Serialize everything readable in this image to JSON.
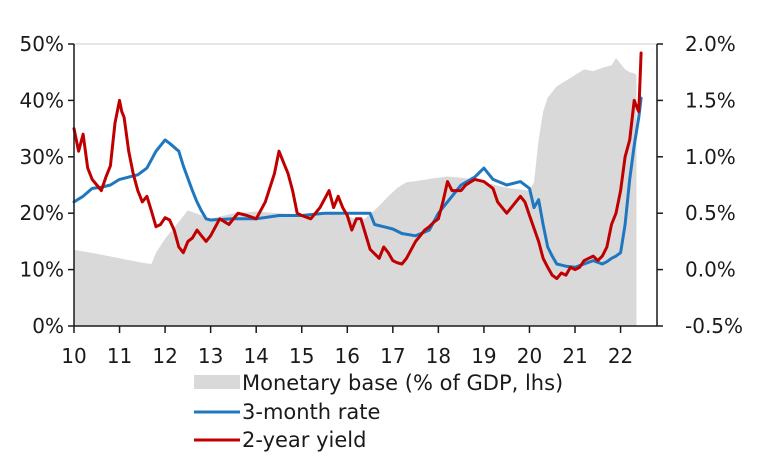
{
  "chart_data": {
    "type": "line",
    "title": "",
    "xlabel": "",
    "ylabel": "",
    "x_range": [
      10,
      22.8
    ],
    "x_ticks": [
      10,
      11,
      12,
      13,
      14,
      15,
      16,
      17,
      18,
      19,
      20,
      21,
      22
    ],
    "x_tick_labels": [
      "10",
      "11",
      "12",
      "13",
      "14",
      "15",
      "16",
      "17",
      "18",
      "19",
      "20",
      "21",
      "22"
    ],
    "left_axis": {
      "range": [
        0,
        50
      ],
      "ticks": [
        0,
        10,
        20,
        30,
        40,
        50
      ],
      "tick_labels": [
        "0%",
        "10%",
        "20%",
        "30%",
        "40%",
        "50%"
      ]
    },
    "right_axis": {
      "range": [
        -0.5,
        2.0
      ],
      "ticks": [
        -0.5,
        0.0,
        0.5,
        1.0,
        1.5,
        2.0
      ],
      "tick_labels": [
        "-0.5%",
        "0.0%",
        "0.5%",
        "1.0%",
        "1.5%",
        "2.0%"
      ]
    },
    "legend_position": "bottom",
    "colors": {
      "monetary_base": "#d9d9d9",
      "three_month": "#1f77c0",
      "two_year": "#c00000",
      "axis": "#1a1a1a",
      "grid": "#cccccc"
    },
    "series": [
      {
        "name": "Monetary base (% of GDP, lhs)",
        "kind": "area",
        "axis": "left",
        "x": [
          10.0,
          10.5,
          11.0,
          11.5,
          11.7,
          11.8,
          12.0,
          12.3,
          12.5,
          13.0,
          13.5,
          14.0,
          14.5,
          15.0,
          15.5,
          16.0,
          16.3,
          16.6,
          16.9,
          17.1,
          17.3,
          17.6,
          17.9,
          18.2,
          18.5,
          18.8,
          19.0,
          19.5,
          20.0,
          20.1,
          20.2,
          20.3,
          20.4,
          20.6,
          20.8,
          21.0,
          21.2,
          21.4,
          21.6,
          21.8,
          21.9,
          22.0,
          22.1,
          22.2,
          22.3,
          22.35
        ],
        "values": [
          13.5,
          12.8,
          12.0,
          11.2,
          11.0,
          13.0,
          15.5,
          18.5,
          20.5,
          19.0,
          20.0,
          20.3,
          20.0,
          19.8,
          20.0,
          19.6,
          18.5,
          20.5,
          23.0,
          24.5,
          25.5,
          25.8,
          26.2,
          26.5,
          26.3,
          26.0,
          25.5,
          24.5,
          24.0,
          25.5,
          33.0,
          38.0,
          40.5,
          42.5,
          43.5,
          44.5,
          45.5,
          45.2,
          45.8,
          46.2,
          47.5,
          46.5,
          45.5,
          45.0,
          44.8,
          44.5
        ]
      },
      {
        "name": "3-month rate",
        "kind": "line",
        "axis": "right",
        "x": [
          10.0,
          10.2,
          10.4,
          10.6,
          10.8,
          11.0,
          11.2,
          11.4,
          11.6,
          11.8,
          12.0,
          12.1,
          12.3,
          12.4,
          12.6,
          12.7,
          12.8,
          12.9,
          13.0,
          13.5,
          14.0,
          14.5,
          15.0,
          15.5,
          16.0,
          16.3,
          16.5,
          16.6,
          16.8,
          17.0,
          17.2,
          17.5,
          17.8,
          18.0,
          18.3,
          18.5,
          18.8,
          19.0,
          19.2,
          19.5,
          19.8,
          20.0,
          20.1,
          20.2,
          20.3,
          20.4,
          20.5,
          20.6,
          20.7,
          20.8,
          21.0,
          21.2,
          21.4,
          21.6,
          21.7,
          21.8,
          21.9,
          22.0,
          22.1,
          22.2,
          22.3,
          22.4,
          22.45
        ],
        "values": [
          0.6,
          0.65,
          0.72,
          0.73,
          0.75,
          0.8,
          0.82,
          0.84,
          0.9,
          1.05,
          1.15,
          1.12,
          1.05,
          0.92,
          0.7,
          0.6,
          0.52,
          0.45,
          0.44,
          0.45,
          0.45,
          0.48,
          0.48,
          0.5,
          0.5,
          0.5,
          0.5,
          0.4,
          0.38,
          0.36,
          0.32,
          0.3,
          0.35,
          0.5,
          0.65,
          0.75,
          0.82,
          0.9,
          0.8,
          0.75,
          0.78,
          0.72,
          0.55,
          0.62,
          0.4,
          0.2,
          0.12,
          0.05,
          0.04,
          0.03,
          0.02,
          0.05,
          0.08,
          0.05,
          0.07,
          0.1,
          0.12,
          0.15,
          0.4,
          0.8,
          1.1,
          1.35,
          1.52
        ]
      },
      {
        "name": "2-year yield",
        "kind": "line",
        "axis": "right",
        "x": [
          10.0,
          10.1,
          10.2,
          10.3,
          10.4,
          10.5,
          10.6,
          10.7,
          10.8,
          10.9,
          11.0,
          11.05,
          11.1,
          11.2,
          11.3,
          11.4,
          11.5,
          11.6,
          11.7,
          11.8,
          11.9,
          12.0,
          12.1,
          12.2,
          12.3,
          12.4,
          12.5,
          12.6,
          12.7,
          12.8,
          12.9,
          13.0,
          13.2,
          13.4,
          13.6,
          13.8,
          14.0,
          14.2,
          14.4,
          14.5,
          14.6,
          14.7,
          14.8,
          14.9,
          15.0,
          15.2,
          15.4,
          15.6,
          15.7,
          15.8,
          15.9,
          16.0,
          16.1,
          16.2,
          16.3,
          16.5,
          16.7,
          16.8,
          16.9,
          17.0,
          17.1,
          17.2,
          17.3,
          17.5,
          17.6,
          17.7,
          17.8,
          17.9,
          18.0,
          18.1,
          18.2,
          18.3,
          18.5,
          18.6,
          18.8,
          19.0,
          19.2,
          19.3,
          19.5,
          19.6,
          19.7,
          19.8,
          19.9,
          20.0,
          20.2,
          20.3,
          20.4,
          20.5,
          20.6,
          20.7,
          20.8,
          20.9,
          21.0,
          21.1,
          21.2,
          21.3,
          21.4,
          21.5,
          21.6,
          21.7,
          21.8,
          21.9,
          22.0,
          22.1,
          22.2,
          22.3,
          22.4,
          22.45
        ],
        "values": [
          1.25,
          1.05,
          1.2,
          0.9,
          0.8,
          0.75,
          0.7,
          0.82,
          0.92,
          1.3,
          1.5,
          1.4,
          1.35,
          1.05,
          0.85,
          0.7,
          0.6,
          0.65,
          0.52,
          0.38,
          0.4,
          0.46,
          0.44,
          0.35,
          0.2,
          0.15,
          0.25,
          0.28,
          0.35,
          0.3,
          0.25,
          0.3,
          0.45,
          0.4,
          0.5,
          0.48,
          0.45,
          0.6,
          0.85,
          1.05,
          0.95,
          0.85,
          0.7,
          0.5,
          0.48,
          0.45,
          0.55,
          0.7,
          0.55,
          0.65,
          0.55,
          0.48,
          0.35,
          0.45,
          0.45,
          0.18,
          0.1,
          0.2,
          0.15,
          0.08,
          0.06,
          0.05,
          0.1,
          0.25,
          0.3,
          0.35,
          0.38,
          0.42,
          0.45,
          0.6,
          0.78,
          0.7,
          0.7,
          0.75,
          0.8,
          0.78,
          0.72,
          0.6,
          0.5,
          0.55,
          0.6,
          0.65,
          0.6,
          0.48,
          0.25,
          0.1,
          0.02,
          -0.05,
          -0.08,
          -0.03,
          -0.05,
          0.02,
          0.0,
          0.02,
          0.08,
          0.1,
          0.12,
          0.08,
          0.12,
          0.2,
          0.4,
          0.5,
          0.7,
          1.0,
          1.15,
          1.5,
          1.4,
          1.92
        ]
      }
    ]
  }
}
